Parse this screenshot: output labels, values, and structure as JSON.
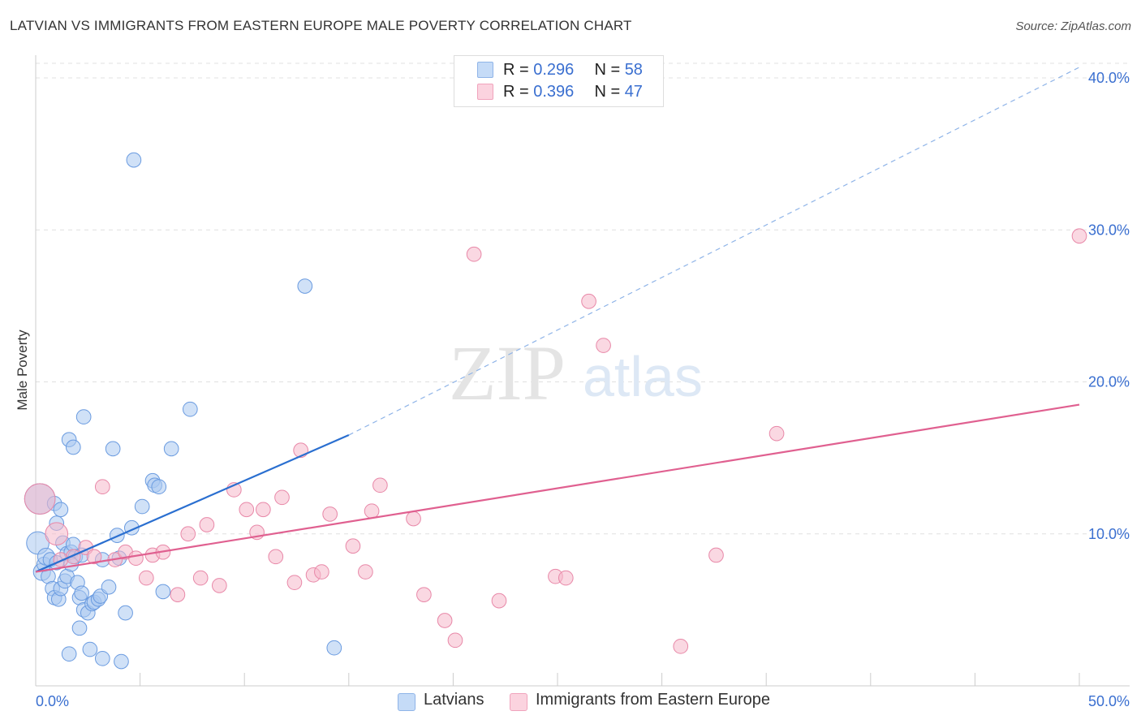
{
  "title": "LATVIAN VS IMMIGRANTS FROM EASTERN EUROPE MALE POVERTY CORRELATION CHART",
  "source": "Source: ZipAtlas.com",
  "watermark": {
    "zip": "ZIP",
    "atlas": "atlas"
  },
  "legend": {
    "rows": [
      {
        "r_label": "R = ",
        "r_value": "0.296",
        "n_label": "N = ",
        "n_value": "58",
        "color": "#a9c8f0"
      },
      {
        "r_label": "R = ",
        "r_value": "0.396",
        "n_label": "N = ",
        "n_value": "47",
        "color": "#f6b8cb"
      }
    ]
  },
  "bottom_legend": [
    {
      "label": "Latvians",
      "color": "#a9c8f0"
    },
    {
      "label": "Immigrants from Eastern Europe",
      "color": "#f6b8cb"
    }
  ],
  "chart_data": {
    "type": "scatter",
    "ylabel": "Male Poverty",
    "xlim": [
      0,
      50
    ],
    "ylim": [
      0,
      40
    ],
    "x_tick_labels": [
      "0.0%",
      "50.0%"
    ],
    "y_tick_labels": [
      "10.0%",
      "20.0%",
      "30.0%",
      "40.0%"
    ],
    "y_ticks": [
      10,
      20,
      30,
      40
    ],
    "grid": true,
    "series": [
      {
        "name": "Latvians",
        "color": "#6a9be0",
        "fill": "#a9c8f0",
        "trend": {
          "x0": 0,
          "y0": 7.5,
          "x1": 15,
          "y1": 16.5,
          "dashed_to_x": 50,
          "dashed_to_y": 40.7,
          "color": "#2a6fd0"
        },
        "points": [
          [
            0.1,
            9.4,
            16
          ],
          [
            0.2,
            12.3,
            22
          ],
          [
            0.3,
            7.5,
            12
          ],
          [
            0.4,
            8.0,
            10
          ],
          [
            0.5,
            8.5,
            12
          ],
          [
            0.6,
            7.2,
            10
          ],
          [
            0.7,
            8.3,
            10
          ],
          [
            0.8,
            6.4,
            10
          ],
          [
            0.9,
            5.8,
            10
          ],
          [
            1.0,
            8.1,
            10
          ],
          [
            0.9,
            12.0,
            10
          ],
          [
            1.0,
            10.7,
            10
          ],
          [
            1.1,
            5.7,
            10
          ],
          [
            1.2,
            6.4,
            10
          ],
          [
            1.2,
            11.6,
            10
          ],
          [
            1.3,
            9.4,
            10
          ],
          [
            1.4,
            6.9,
            10
          ],
          [
            1.5,
            8.7,
            10
          ],
          [
            1.5,
            7.2,
            10
          ],
          [
            1.6,
            16.2,
            10
          ],
          [
            1.6,
            2.1,
            10
          ],
          [
            1.7,
            8.8,
            10
          ],
          [
            1.8,
            9.3,
            10
          ],
          [
            1.9,
            8.5,
            10
          ],
          [
            1.8,
            15.7,
            10
          ],
          [
            2.0,
            6.8,
            10
          ],
          [
            2.1,
            5.8,
            10
          ],
          [
            2.1,
            3.8,
            10
          ],
          [
            2.2,
            6.1,
            10
          ],
          [
            2.2,
            8.6,
            10
          ],
          [
            2.3,
            5.0,
            10
          ],
          [
            2.3,
            17.7,
            10
          ],
          [
            2.5,
            4.8,
            10
          ],
          [
            2.6,
            2.4,
            10
          ],
          [
            2.7,
            5.4,
            10
          ],
          [
            2.8,
            5.5,
            10
          ],
          [
            3.0,
            5.7,
            10
          ],
          [
            3.1,
            5.9,
            10
          ],
          [
            3.2,
            1.8,
            10
          ],
          [
            3.2,
            8.3,
            10
          ],
          [
            3.5,
            6.5,
            10
          ],
          [
            3.7,
            15.6,
            10
          ],
          [
            3.9,
            9.9,
            10
          ],
          [
            4.0,
            8.4,
            10
          ],
          [
            4.1,
            1.6,
            10
          ],
          [
            4.3,
            4.8,
            10
          ],
          [
            4.6,
            10.4,
            10
          ],
          [
            4.7,
            34.6,
            10
          ],
          [
            5.1,
            11.8,
            10
          ],
          [
            5.6,
            13.5,
            10
          ],
          [
            5.7,
            13.2,
            10
          ],
          [
            5.9,
            13.1,
            10
          ],
          [
            6.1,
            6.2,
            10
          ],
          [
            6.5,
            15.6,
            10
          ],
          [
            7.4,
            18.2,
            10
          ],
          [
            12.9,
            26.3,
            10
          ],
          [
            14.3,
            2.5,
            10
          ],
          [
            1.7,
            8.0,
            10
          ]
        ]
      },
      {
        "name": "Immigrants from Eastern Europe",
        "color": "#e888a8",
        "fill": "#f6b8cb",
        "trend": {
          "x0": 0,
          "y0": 7.5,
          "x1": 50,
          "y1": 18.5,
          "color": "#e06090"
        },
        "points": [
          [
            0.2,
            12.3,
            22
          ],
          [
            1.0,
            10.0,
            16
          ],
          [
            1.8,
            8.5,
            10
          ],
          [
            2.4,
            9.1,
            10
          ],
          [
            2.8,
            8.5,
            10
          ],
          [
            3.2,
            13.1,
            10
          ],
          [
            3.8,
            8.3,
            10
          ],
          [
            4.3,
            8.8,
            10
          ],
          [
            4.8,
            8.4,
            10
          ],
          [
            5.3,
            7.1,
            10
          ],
          [
            5.6,
            8.6,
            10
          ],
          [
            6.1,
            8.8,
            10
          ],
          [
            6.8,
            6.0,
            10
          ],
          [
            7.3,
            10.0,
            10
          ],
          [
            7.9,
            7.1,
            10
          ],
          [
            8.2,
            10.6,
            10
          ],
          [
            8.8,
            6.6,
            10
          ],
          [
            9.5,
            12.9,
            10
          ],
          [
            10.1,
            11.6,
            10
          ],
          [
            10.6,
            10.1,
            10
          ],
          [
            10.9,
            11.6,
            10
          ],
          [
            11.5,
            8.5,
            10
          ],
          [
            11.8,
            12.4,
            10
          ],
          [
            12.4,
            6.8,
            10
          ],
          [
            12.7,
            15.5,
            10
          ],
          [
            13.3,
            7.3,
            10
          ],
          [
            13.7,
            7.5,
            10
          ],
          [
            14.1,
            11.3,
            10
          ],
          [
            15.2,
            9.2,
            10
          ],
          [
            15.8,
            7.5,
            10
          ],
          [
            16.1,
            11.5,
            10
          ],
          [
            16.5,
            13.2,
            10
          ],
          [
            18.1,
            11.0,
            10
          ],
          [
            18.6,
            6.0,
            10
          ],
          [
            19.6,
            4.3,
            10
          ],
          [
            20.1,
            3.0,
            10
          ],
          [
            21.0,
            28.4,
            10
          ],
          [
            22.2,
            5.6,
            10
          ],
          [
            24.9,
            7.2,
            10
          ],
          [
            25.4,
            7.1,
            10
          ],
          [
            26.5,
            25.3,
            10
          ],
          [
            27.2,
            22.4,
            10
          ],
          [
            30.9,
            2.6,
            10
          ],
          [
            32.6,
            8.6,
            10
          ],
          [
            35.5,
            16.6,
            10
          ],
          [
            50.0,
            29.6,
            10
          ],
          [
            1.2,
            8.3,
            10
          ]
        ]
      }
    ]
  }
}
